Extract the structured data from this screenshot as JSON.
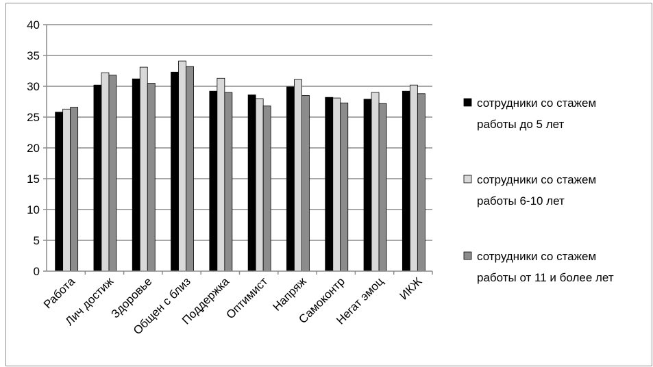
{
  "chart_data": {
    "type": "bar",
    "title": "",
    "xlabel": "",
    "ylabel": "",
    "ylim": [
      0,
      40
    ],
    "yticks": [
      0,
      5,
      10,
      15,
      20,
      25,
      30,
      35,
      40
    ],
    "grid": true,
    "legend_position": "right",
    "categories": [
      "Работа",
      "Лич достиж",
      "Здоровье",
      "Общен с близ",
      "Поддержка",
      "Оптимист",
      "Напряж",
      "Самоконтр",
      "Негат эмоц",
      "ИКЖ"
    ],
    "series": [
      {
        "name_lines": [
          "сотрудники со стажем",
          "работы до 5 лет"
        ],
        "color": "#000000",
        "values": [
          25.8,
          30.2,
          31.2,
          32.3,
          29.2,
          28.6,
          29.9,
          28.2,
          27.9,
          29.2
        ]
      },
      {
        "name_lines": [
          "сотрудники со стажем",
          "работы 6-10 лет"
        ],
        "color": "#d9d9d9",
        "values": [
          26.3,
          32.2,
          33.1,
          34.1,
          31.3,
          28.0,
          31.1,
          28.1,
          29.0,
          30.2
        ]
      },
      {
        "name_lines": [
          "сотрудники со стажем",
          "работы от 11 и более лет"
        ],
        "color": "#8c8c8c",
        "values": [
          26.6,
          31.8,
          30.5,
          33.2,
          29.0,
          26.8,
          28.5,
          27.3,
          27.2,
          28.8
        ]
      }
    ]
  }
}
